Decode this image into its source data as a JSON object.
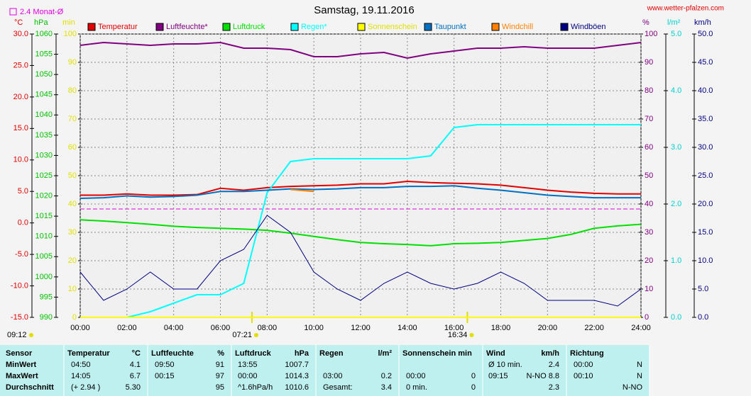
{
  "chart_data": {
    "type": "line",
    "title": "Samstag, 19.11.2016",
    "source": "www.wetter-pfalzen.com",
    "legend_note": "2.4 Monat-Ø",
    "time_note": "09:12",
    "sun_marks": [
      {
        "label": "07:21",
        "x": 7.35
      },
      {
        "label": "16:34",
        "x": 16.57
      }
    ],
    "grid": true,
    "xlim": [
      0,
      24
    ],
    "xticks": [
      {
        "value": 0,
        "label": "00:00"
      },
      {
        "value": 2,
        "label": "02:00"
      },
      {
        "value": 4,
        "label": "04:00"
      },
      {
        "value": 6,
        "label": "06:00"
      },
      {
        "value": 8,
        "label": "08:00"
      },
      {
        "value": 10,
        "label": "10:00"
      },
      {
        "value": 12,
        "label": "12:00"
      },
      {
        "value": 14,
        "label": "14:00"
      },
      {
        "value": 16,
        "label": "16:00"
      },
      {
        "value": 18,
        "label": "18:00"
      },
      {
        "value": 20,
        "label": "20:00"
      },
      {
        "value": 22,
        "label": "22:00"
      },
      {
        "value": 24,
        "label": "24:00"
      }
    ],
    "axes": [
      {
        "unit": "°C",
        "color": "#e00000",
        "lim": [
          -15,
          30
        ],
        "ticks": [
          {
            "value": -15,
            "label": "-15.0"
          },
          {
            "value": -10,
            "label": "-10.0"
          },
          {
            "value": -5,
            "label": "-5.0"
          },
          {
            "value": 0,
            "label": "0.0"
          },
          {
            "value": 5,
            "label": "5.0"
          },
          {
            "value": 10,
            "label": "10.0"
          },
          {
            "value": 15,
            "label": "15.0"
          },
          {
            "value": 20,
            "label": "20.0"
          },
          {
            "value": 25,
            "label": "25.0"
          },
          {
            "value": 30,
            "label": "30.0"
          }
        ]
      },
      {
        "unit": "hPa",
        "color": "#00c000",
        "lim": [
          990,
          1060
        ],
        "ticks": [
          990,
          995,
          1000,
          1005,
          1010,
          1015,
          1020,
          1025,
          1030,
          1035,
          1040,
          1045,
          1050,
          1055,
          1060
        ]
      },
      {
        "unit": "min",
        "color": "#e0e000",
        "lim": [
          0,
          100
        ],
        "ticks": [
          0,
          10,
          20,
          30,
          40,
          50,
          60,
          70,
          80,
          90,
          100
        ]
      },
      {
        "unit": "%",
        "color": "#800080",
        "lim": [
          0,
          100
        ],
        "ticks": [
          0,
          10,
          20,
          30,
          40,
          50,
          60,
          70,
          80,
          90,
          100
        ]
      },
      {
        "unit": "l/m²",
        "color": "#00d0d0",
        "lim": [
          0,
          5
        ],
        "ticks": [
          {
            "value": 0,
            "label": "0.0"
          },
          {
            "value": 1,
            "label": "1.0"
          },
          {
            "value": 2,
            "label": "2.0"
          },
          {
            "value": 3,
            "label": "3.0"
          },
          {
            "value": 4,
            "label": "4.0"
          },
          {
            "value": 5,
            "label": "5.0"
          }
        ]
      },
      {
        "unit": "km/h",
        "color": "#000080",
        "lim": [
          0,
          50
        ],
        "ticks": [
          {
            "value": 0,
            "label": "0.0"
          },
          {
            "value": 5,
            "label": "5.0"
          },
          {
            "value": 10,
            "label": "10.0"
          },
          {
            "value": 15,
            "label": "15.0"
          },
          {
            "value": 20,
            "label": "20.0"
          },
          {
            "value": 25,
            "label": "25.0"
          },
          {
            "value": 30,
            "label": "30.0"
          },
          {
            "value": 35,
            "label": "35.0"
          },
          {
            "value": 40,
            "label": "40.0"
          },
          {
            "value": 45,
            "label": "45.0"
          },
          {
            "value": 50,
            "label": "50.0"
          }
        ]
      }
    ],
    "x": [
      0,
      1,
      2,
      3,
      4,
      5,
      6,
      7,
      8,
      9,
      10,
      11,
      12,
      13,
      14,
      15,
      16,
      17,
      18,
      19,
      20,
      21,
      22,
      23,
      24
    ],
    "series": [
      {
        "name": "Temperatur",
        "color": "#e00000",
        "axis": 0,
        "values": [
          4.4,
          4.4,
          4.6,
          4.4,
          4.4,
          4.5,
          5.5,
          5.2,
          5.6,
          5.8,
          5.9,
          6.0,
          6.2,
          6.2,
          6.6,
          6.4,
          6.3,
          6.2,
          6.0,
          5.6,
          5.2,
          4.9,
          4.7,
          4.6,
          4.6
        ]
      },
      {
        "name": "Luftfeuchte*",
        "color": "#800080",
        "axis": 3,
        "values": [
          96,
          97,
          96.5,
          96,
          96.5,
          96.5,
          97,
          95,
          95,
          94.5,
          92,
          92,
          93,
          93.5,
          91.5,
          93,
          94,
          95,
          95,
          95.5,
          95,
          95,
          95,
          96,
          97
        ]
      },
      {
        "name": "Luftdruck",
        "color": "#00e000",
        "axis": 1,
        "values": [
          1014.1,
          1013.8,
          1013.4,
          1013,
          1012.5,
          1012.2,
          1012,
          1011.8,
          1011.5,
          1010.8,
          1010,
          1009.2,
          1008.5,
          1008.2,
          1008,
          1007.7,
          1008.2,
          1008.3,
          1008.5,
          1009,
          1009.5,
          1010.5,
          1012,
          1012.6,
          1013
        ]
      },
      {
        "name": "Regen*",
        "color": "#00ffff",
        "axis": 4,
        "values": [
          0,
          0,
          0,
          0.1,
          0.25,
          0.4,
          0.4,
          0.6,
          2.2,
          2.75,
          2.8,
          2.8,
          2.8,
          2.8,
          2.8,
          2.85,
          3.35,
          3.4,
          3.4,
          3.4,
          3.4,
          3.4,
          3.4,
          3.4,
          3.4
        ]
      },
      {
        "name": "Sonnenschein",
        "color": "#ffff00",
        "axis": 2,
        "values": [
          0,
          0,
          0,
          0,
          0,
          0,
          0,
          0,
          0,
          0,
          0,
          0,
          0,
          0,
          0,
          0,
          0,
          0,
          0,
          0,
          0,
          0,
          0,
          0,
          0
        ]
      },
      {
        "name": "Taupunkt",
        "color": "#0070c0",
        "axis": 0,
        "values": [
          3.9,
          4.0,
          4.3,
          4.1,
          4.2,
          4.4,
          5.0,
          5.0,
          5.2,
          5.4,
          5.3,
          5.4,
          5.6,
          5.6,
          5.8,
          5.8,
          5.9,
          5.5,
          5.2,
          4.8,
          4.4,
          4.2,
          4.0,
          4.0,
          4.0
        ]
      },
      {
        "name": "Windchill",
        "color": "#ff8000",
        "axis": 0,
        "values": [
          null,
          null,
          null,
          null,
          null,
          null,
          null,
          null,
          null,
          5.3,
          5.0,
          null,
          null,
          null,
          null,
          null,
          null,
          null,
          null,
          null,
          null,
          null,
          null,
          null,
          null
        ]
      },
      {
        "name": "Windböen",
        "color": "#000080",
        "axis": 5,
        "values": [
          8,
          3,
          5,
          8,
          5,
          5,
          10,
          12,
          18,
          15,
          8,
          5,
          3,
          6,
          8,
          6,
          5,
          6,
          8,
          6,
          3,
          3,
          3,
          2,
          5
        ]
      }
    ]
  },
  "table": {
    "header": [
      "Sensor",
      "Temperatur",
      "°C",
      "Luftfeuchte",
      "%",
      "Luftdruck",
      "hPa",
      "Regen",
      "l/m²",
      "Sonnenschein min",
      "Wind",
      "km/h",
      "Richtung"
    ],
    "rows": [
      [
        "MinWert",
        "04:50",
        "4.1",
        "09:50",
        "91",
        "13:55",
        "1007.7",
        null,
        null,
        null,
        null,
        "Ø 10 min.",
        "2.4",
        "00:00",
        "N"
      ],
      [
        "MaxWert",
        "14:05",
        "6.7",
        "00:15",
        "97",
        "00:00",
        "1014.3",
        "03:00",
        "0.2",
        "00:00",
        "0",
        "09:15",
        "N-NO 8.8",
        "00:10",
        "N"
      ],
      [
        "Durchschnitt",
        "(+ 2.94 )",
        "5.30",
        null,
        "95",
        "^1.6hPa/h",
        "1010.6",
        "Gesamt:",
        "3.4",
        "0 min.",
        "0",
        null,
        "2.3",
        null,
        "N-NO"
      ]
    ]
  }
}
